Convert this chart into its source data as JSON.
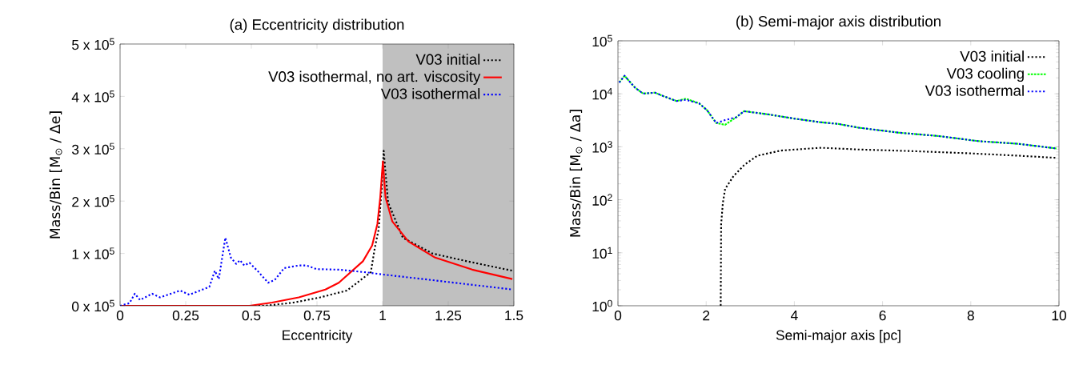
{
  "chart_data": [
    {
      "type": "line",
      "title": "(a) Eccentricity distribution",
      "xlabel": "Eccentricity",
      "ylabel": "Mass/Bin  [M$_{⊙}$ / Δe]",
      "xlim": [
        0,
        1.5
      ],
      "xticks": [
        0,
        0.25,
        0.5,
        0.75,
        1,
        1.25,
        1.5
      ],
      "ylim": [
        0,
        500000
      ],
      "yticks": [
        {
          "value": 0,
          "label": "0 x 10$^{5}$"
        },
        {
          "value": 100000,
          "label": "1 x 10$^{5}$"
        },
        {
          "value": 200000,
          "label": "2 x 10$^{5}$"
        },
        {
          "value": 300000,
          "label": "3 x 10$^{5}$"
        },
        {
          "value": 400000,
          "label": "4 x 10$^{5}$"
        },
        {
          "value": 500000,
          "label": "5 x 10$^{5}$"
        }
      ],
      "legend": "top right",
      "bands": [
        {
          "axis": "x",
          "from": 1,
          "to": 1.5,
          "color": "#c0c0c0"
        }
      ],
      "series": [
        {
          "name": "V03 initial",
          "color": "#000000",
          "line_style": "dotted",
          "x": [
            0,
            0.554,
            0.66,
            0.762,
            0.864,
            0.955,
            0.97,
            0.985,
            0.996,
            1.004,
            1.021,
            1.077,
            1.189,
            1.321,
            1.494
          ],
          "values": [
            0,
            0,
            6000,
            16000,
            29000,
            64000,
            110000,
            146000,
            222000,
            296000,
            197000,
            130000,
            100000,
            85000,
            67000
          ]
        },
        {
          "name": "V03 isothermal, no art. viscosity",
          "color": "#ff0000",
          "line_style": "solid",
          "x": [
            0,
            0.493,
            0.579,
            0.681,
            0.782,
            0.833,
            0.925,
            0.96,
            0.98,
            0.991,
            1.001,
            1.011,
            1.037,
            1.098,
            1.2,
            1.341,
            1.494
          ],
          "values": [
            0,
            0,
            6000,
            16000,
            31000,
            44000,
            85000,
            115000,
            156000,
            207000,
            276000,
            207000,
            161000,
            123000,
            92000,
            69000,
            51000
          ]
        },
        {
          "name": "V03 isothermal",
          "color": "#0000ff",
          "line_style": "dotted",
          "x": [
            0,
            0.036,
            0.056,
            0.076,
            0.122,
            0.152,
            0.229,
            0.264,
            0.34,
            0.361,
            0.376,
            0.401,
            0.422,
            0.442,
            0.457,
            0.473,
            0.493,
            0.523,
            0.564,
            0.589,
            0.625,
            0.681,
            0.711,
            0.747,
            0.833,
            0.935,
            0.996,
            1.189,
            1.494
          ],
          "values": [
            0,
            5000,
            23000,
            11000,
            23000,
            16000,
            29000,
            21000,
            36000,
            67000,
            51000,
            130000,
            92000,
            80000,
            87000,
            77000,
            82000,
            67000,
            44000,
            49000,
            72000,
            77000,
            77000,
            70000,
            69000,
            64000,
            60000,
            49000,
            31000
          ]
        }
      ]
    },
    {
      "type": "line",
      "title": "(b) Semi-major axis distribution",
      "xlabel": "Semi-major axis [pc]",
      "ylabel": "Mass/Bin  [M$_{⊙}$ / Δa]",
      "log": "y",
      "xlim": [
        0,
        10
      ],
      "xticks": [
        0,
        2,
        4,
        6,
        8,
        10
      ],
      "ylim": [
        1,
        100000
      ],
      "yticks": [
        {
          "value": 1,
          "label": "10$^{0}$"
        },
        {
          "value": 10,
          "label": "10$^{1}$"
        },
        {
          "value": 100,
          "label": "10$^{2}$"
        },
        {
          "value": 1000,
          "label": "10$^{3}$"
        },
        {
          "value": 10000,
          "label": "10$^{4}$"
        },
        {
          "value": 100000,
          "label": "10$^{5}$"
        }
      ],
      "legend": "top right",
      "series": [
        {
          "name": "V03 initial",
          "color": "#000000",
          "line_style": "dotted",
          "x": [
            2.33,
            2.34,
            2.38,
            2.43,
            2.62,
            2.86,
            3.16,
            3.7,
            4.6,
            5.45,
            6.66,
            7.86,
            9.07,
            9.92
          ],
          "values": [
            1,
            35,
            89,
            160,
            280,
            450,
            680,
            850,
            960,
            890,
            830,
            760,
            680,
            620
          ]
        },
        {
          "name": "V03 cooling",
          "color": "#00ff00",
          "line_style": "dashed",
          "x": [
            0.03,
            0.15,
            0.39,
            0.57,
            0.84,
            1.05,
            1.33,
            1.54,
            1.84,
            2.02,
            2.23,
            2.43,
            2.68,
            2.86,
            3.4,
            4.0,
            4.6,
            5.0,
            5.45,
            6.36,
            7.26,
            8.17,
            9.07,
            9.94
          ],
          "values": [
            16400,
            21900,
            13000,
            10100,
            10500,
            8900,
            7300,
            8100,
            6600,
            4900,
            2800,
            2600,
            3600,
            4700,
            4100,
            3400,
            2900,
            2700,
            2300,
            1850,
            1600,
            1280,
            1140,
            930
          ]
        },
        {
          "name": "V03 isothermal",
          "color": "#0000ff",
          "line_style": "dotted",
          "x": [
            0.03,
            0.15,
            0.39,
            0.57,
            0.84,
            1.05,
            1.33,
            1.54,
            1.84,
            2.02,
            2.23,
            2.43,
            2.68,
            2.86,
            3.4,
            4.0,
            4.6,
            5.0,
            5.45,
            6.36,
            7.26,
            8.17,
            9.07,
            9.94
          ],
          "values": [
            16400,
            21900,
            13000,
            10100,
            10500,
            8900,
            7300,
            7700,
            6600,
            4900,
            2800,
            3200,
            3600,
            4700,
            4100,
            3400,
            2900,
            2700,
            2300,
            1850,
            1600,
            1280,
            1140,
            930
          ]
        }
      ]
    }
  ]
}
